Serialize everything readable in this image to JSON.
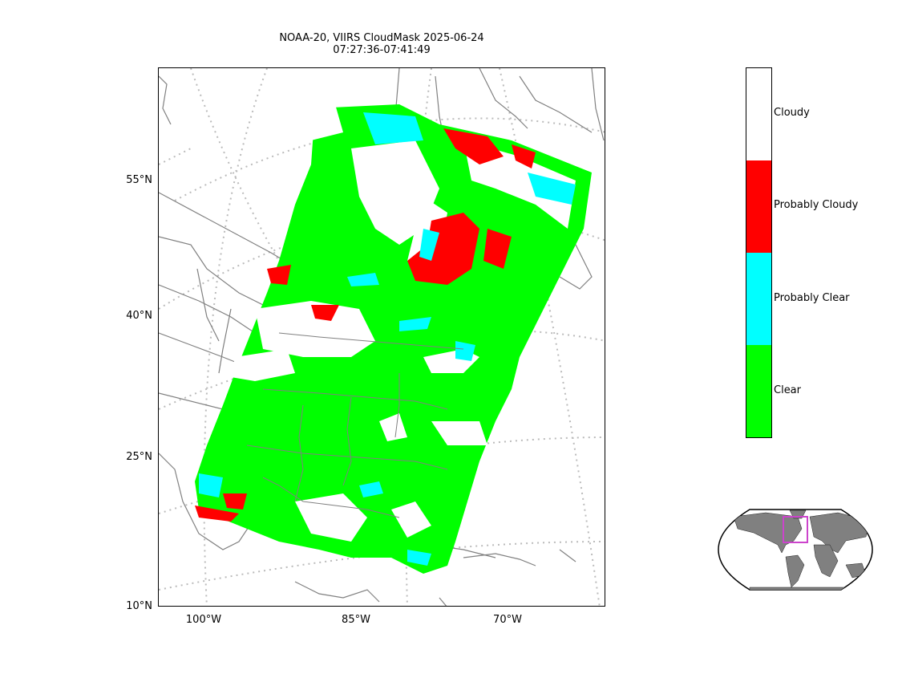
{
  "title": {
    "line1": "NOAA-20, VIIRS CloudMask 2025-06-24",
    "line2": "07:27:36-07:41:49"
  },
  "lat_ticks": [
    {
      "label": "55°N",
      "value": 55
    },
    {
      "label": "40°N",
      "value": 40
    },
    {
      "label": "25°N",
      "value": 25
    },
    {
      "label": "10°N",
      "value": 10
    }
  ],
  "lon_ticks": [
    {
      "label": "100°W",
      "value": -100
    },
    {
      "label": "85°W",
      "value": -85
    },
    {
      "label": "70°W",
      "value": -70
    }
  ],
  "colorbar": {
    "categories": [
      {
        "label": "Cloudy",
        "color": "#ffffff"
      },
      {
        "label": "Probably Cloudy",
        "color": "#ff0000"
      },
      {
        "label": "Probably Clear",
        "color": "#00ffff"
      },
      {
        "label": "Clear",
        "color": "#00ff00"
      }
    ]
  },
  "colors": {
    "coastline": "#808080",
    "gridline": "#bbbbbb",
    "inset_land": "#808080",
    "inset_box": "#cc44cc"
  }
}
